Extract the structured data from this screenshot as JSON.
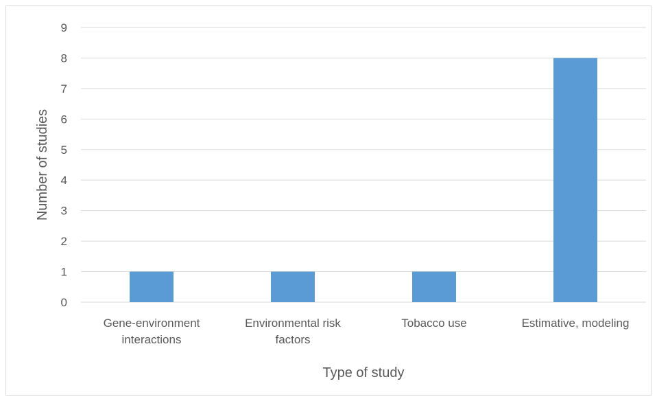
{
  "chart_data": {
    "type": "bar",
    "categories": [
      [
        "Gene-environment",
        "interactions"
      ],
      [
        "Environmental risk",
        "factors"
      ],
      [
        "Tobacco use"
      ],
      [
        "Estimative, modeling"
      ]
    ],
    "values": [
      1,
      1,
      1,
      8
    ],
    "xlabel": "Type of study",
    "ylabel": "Number of studies",
    "ylim": [
      0,
      9
    ],
    "yticks": [
      "0",
      "1",
      "2",
      "3",
      "4",
      "5",
      "6",
      "7",
      "8",
      "9"
    ],
    "grid": true,
    "legend": "none",
    "bar_color": "#5b9bd5",
    "grid_color": "#d9d9d9",
    "text_color": "#595959"
  }
}
